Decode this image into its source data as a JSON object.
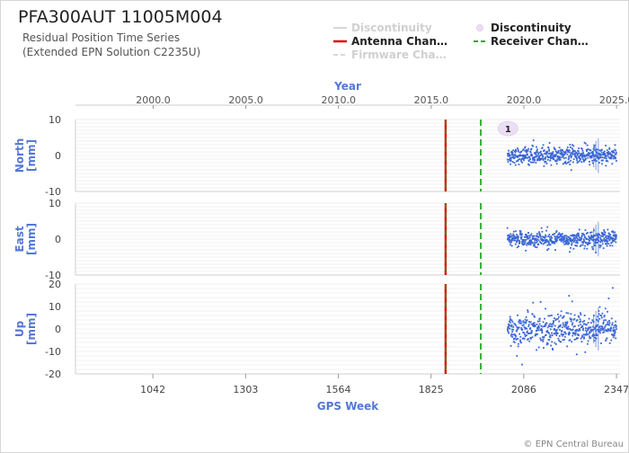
{
  "title": "PFA300AUT 11005M004",
  "subtitle_lines": [
    "Residual Position Time Series",
    "(Extended EPN Solution C2235U)"
  ],
  "credit": "© EPN Central Bureau",
  "colors": {
    "points": "#3a66d4",
    "antenna": "#dd0000",
    "receiver": "#22aa22",
    "firmware": "#cfcfcf",
    "axis_label": "#5577d6",
    "grid": "#e6e6e6",
    "marker_fill": "#ecdff5"
  },
  "legend": [
    {
      "label": "Discontinuity",
      "symbol": "line",
      "color": "#d8d8d8",
      "active": false
    },
    {
      "label": "Discontinuity",
      "symbol": "dot",
      "color": "#ecdff5",
      "active": true
    },
    {
      "label": "Antenna Chan…",
      "symbol": "line",
      "color": "#dd0000",
      "active": true
    },
    {
      "label": "Receiver Chan…",
      "symbol": "dashed",
      "color": "#22aa22",
      "active": true
    },
    {
      "label": "Firmware Cha…",
      "symbol": "dashed",
      "color": "#d8d8d8",
      "active": false
    }
  ],
  "chart_data": {
    "type": "scatter",
    "top_axis": {
      "label": "Year",
      "ticks": [
        "2000.0",
        "2005.0",
        "2010.0",
        "2015.0",
        "2020.0",
        "2025.0"
      ],
      "tick_values": [
        2000,
        2005,
        2010,
        2015,
        2020,
        2025
      ]
    },
    "bottom_axis": {
      "label": "GPS Week",
      "ticks": [
        "1042",
        "1303",
        "1564",
        "1825",
        "2086",
        "2347"
      ],
      "tick_values": [
        1042,
        1303,
        1564,
        1825,
        2086,
        2347
      ]
    },
    "x_range_week": [
      824,
      2357
    ],
    "data_start_week": 2040,
    "data_end_week": 2347,
    "antenna_change_week": 1866,
    "receiver_change_week": 1965,
    "discontinuity_marker": {
      "label": "1",
      "week": 2034
    },
    "panels": [
      {
        "name": "North",
        "ylabel": "North\n[mm]",
        "ylim": [
          -10,
          10
        ],
        "yticks": [
          "10",
          "0",
          "-10"
        ],
        "tick_values": [
          10,
          0,
          -10
        ],
        "scatter_sd": 1.1
      },
      {
        "name": "East",
        "ylabel": "East\n[mm]",
        "ylim": [
          -10,
          10
        ],
        "yticks": [
          "10",
          "0",
          "-10"
        ],
        "tick_values": [
          10,
          0,
          -10
        ],
        "scatter_sd": 1.1
      },
      {
        "name": "Up",
        "ylabel": "Up\n[mm]",
        "ylim": [
          -20,
          20
        ],
        "yticks": [
          "20",
          "10",
          "0",
          "-10",
          "-20"
        ],
        "tick_values": [
          20,
          10,
          0,
          -10,
          -20
        ],
        "scatter_sd": 3.6
      }
    ]
  }
}
